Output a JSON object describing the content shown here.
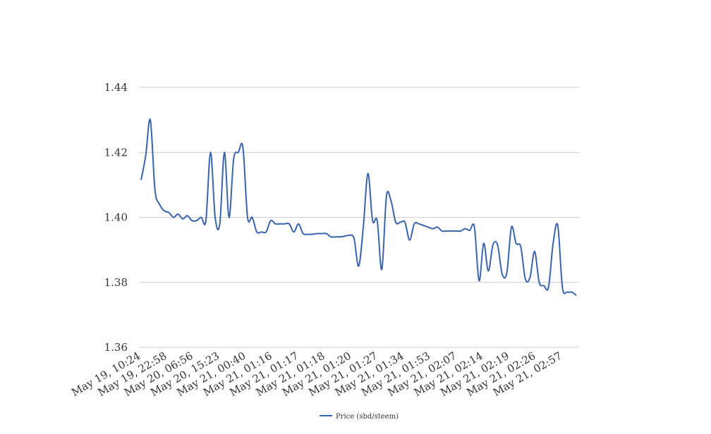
{
  "chart_data": {
    "type": "line",
    "title": "",
    "xlabel": "",
    "ylabel": "",
    "ylim": [
      1.36,
      1.44
    ],
    "yticks": [
      "1.36",
      "1.38",
      "1.40",
      "1.42",
      "1.44"
    ],
    "grid": true,
    "legend_position": "bottom-center",
    "x_tick_labels": [
      "May 19, 10:24",
      "May 19, 22:58",
      "May 20, 06:56",
      "May 20, 15:23",
      "May 21, 00:40",
      "May 21, 01:16",
      "May 21, 01:17",
      "May 21, 01:18",
      "May 21, 01:20",
      "May 21, 01:27",
      "May 21, 01:34",
      "May 21, 01:53",
      "May 21, 02:07",
      "May 21, 02:14",
      "May 21, 02:19",
      "May 21, 02:26",
      "May 21, 02:57"
    ],
    "series": [
      {
        "name": "Price (sbd/steem)",
        "color": "#3a63ad",
        "values": [
          1.4115,
          1.419,
          1.43,
          1.4085,
          1.404,
          1.402,
          1.4015,
          1.4,
          1.401,
          1.3995,
          1.4005,
          1.399,
          1.399,
          1.4,
          1.399,
          1.42,
          1.4,
          1.398,
          1.42,
          1.4,
          1.418,
          1.42,
          1.4215,
          1.4,
          1.4,
          1.3955,
          1.3955,
          1.3955,
          1.399,
          1.398,
          1.398,
          1.398,
          1.398,
          1.3955,
          1.398,
          1.395,
          1.3948,
          1.3948,
          1.395,
          1.395,
          1.395,
          1.394,
          1.394,
          1.394,
          1.3942,
          1.3945,
          1.3935,
          1.385,
          1.397,
          1.4135,
          1.399,
          1.399,
          1.384,
          1.4065,
          1.405,
          1.3985,
          1.3985,
          1.3985,
          1.393,
          1.398,
          1.398,
          1.3975,
          1.397,
          1.3965,
          1.397,
          1.3958,
          1.3958,
          1.3958,
          1.3958,
          1.3958,
          1.3965,
          1.396,
          1.397,
          1.3805,
          1.392,
          1.3835,
          1.3915,
          1.3915,
          1.3825,
          1.383,
          1.397,
          1.392,
          1.391,
          1.381,
          1.3815,
          1.3895,
          1.38,
          1.379,
          1.3785,
          1.392,
          1.3975,
          1.3785,
          1.377,
          1.377,
          1.376
        ]
      }
    ]
  }
}
